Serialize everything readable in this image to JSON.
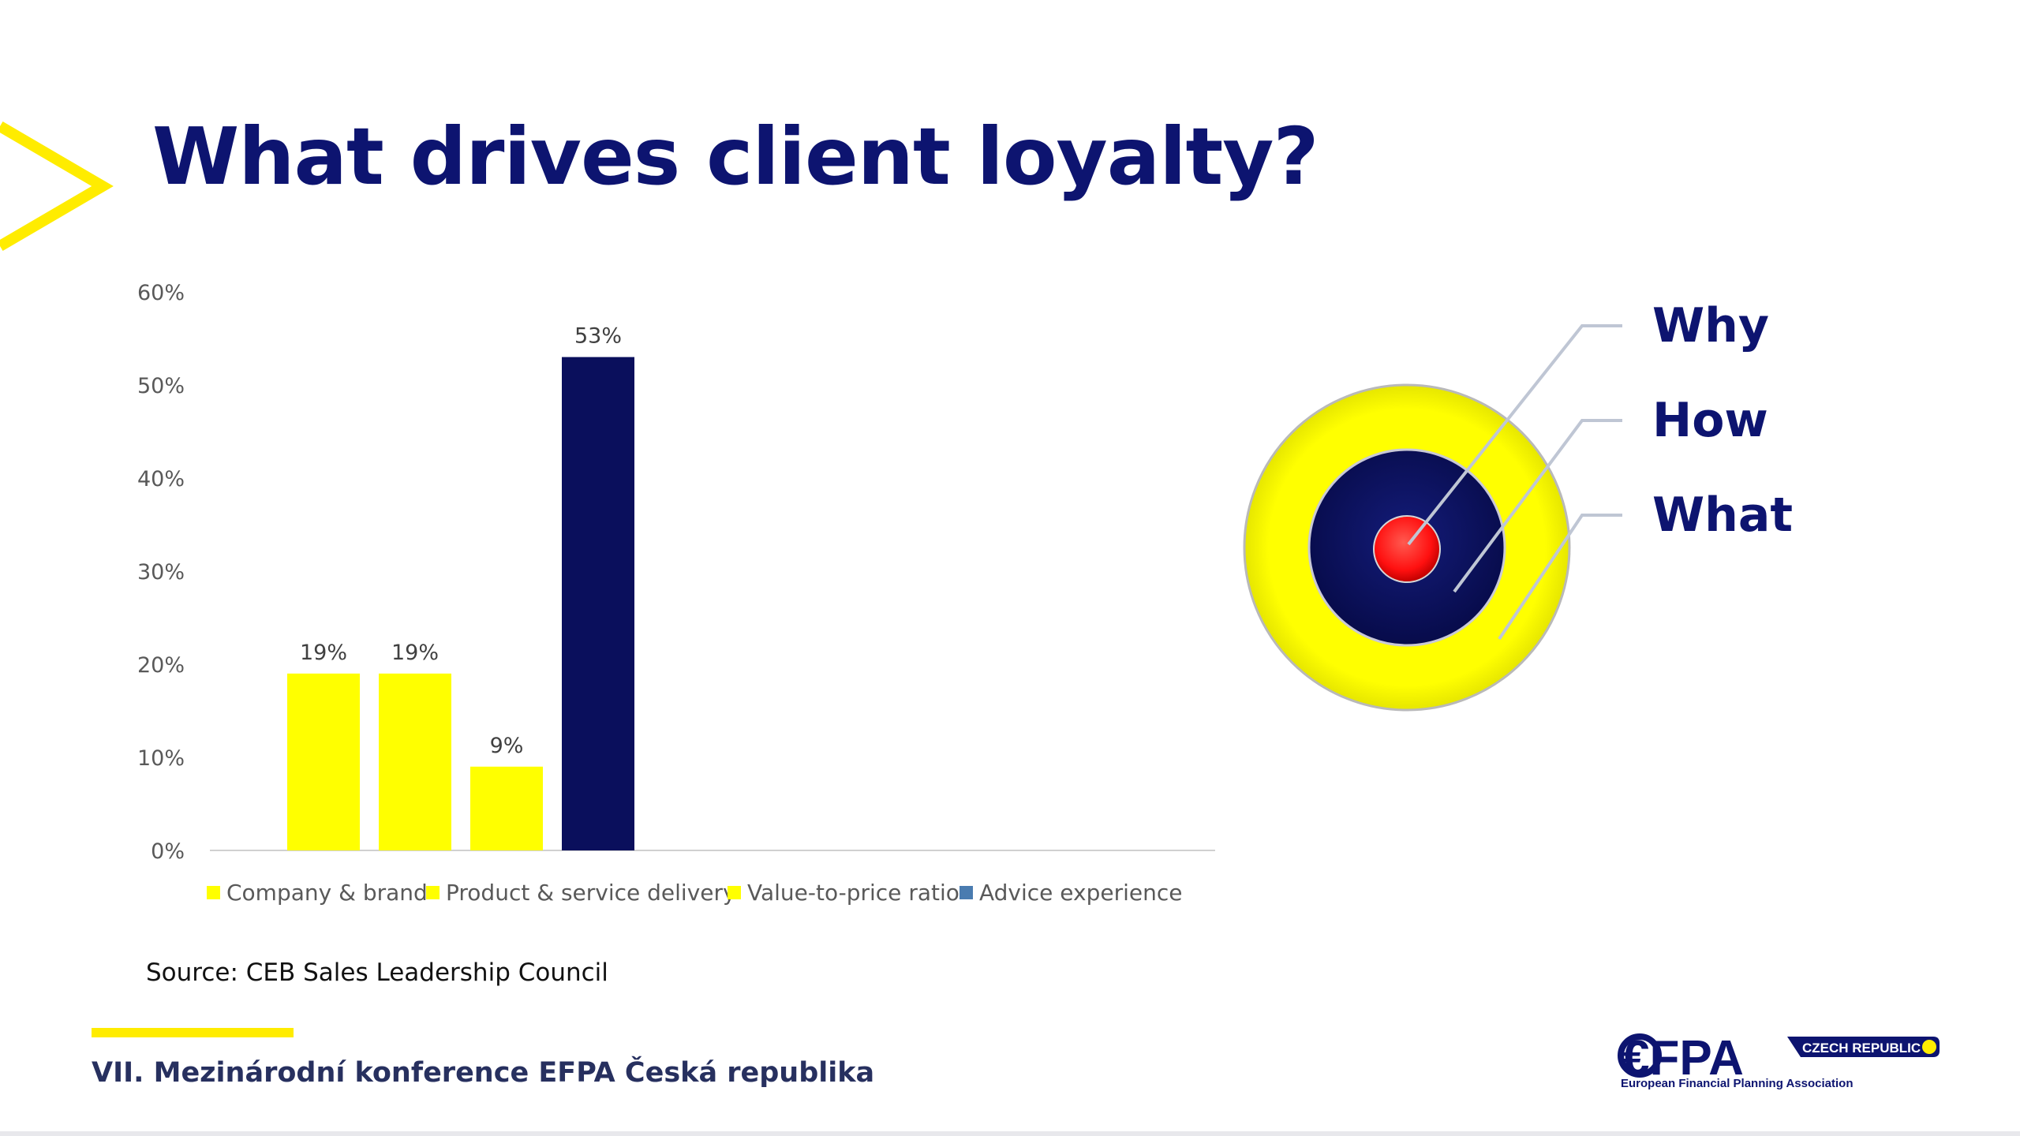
{
  "slide": {
    "title": "What drives client loyalty?",
    "source": "Source: CEB Sales Leadership Council",
    "footer": "VII. Mezinárodní konference EFPA Česká republika"
  },
  "target_diagram": {
    "labels": [
      "Why",
      "How",
      "What"
    ],
    "colors": {
      "outer": "#ffff00",
      "middle": "#0a0f60",
      "core": "#ff1010"
    }
  },
  "logo": {
    "brand": "€FPA",
    "badge": "CZECH REPUBLIC",
    "tagline": "European Financial Planning Association"
  },
  "colors": {
    "accent_yellow": "#ffff00",
    "navy": "#0a0f5c",
    "title_navy": "#0d1470"
  },
  "chart_data": {
    "type": "bar",
    "categories": [
      "Company & brand",
      "Product & service delivery",
      "Value-to-price ratio",
      "Advice experience"
    ],
    "values": [
      19,
      19,
      9,
      53
    ],
    "data_labels": [
      "19%",
      "19%",
      "9%",
      "53%"
    ],
    "colors": [
      "#ffff00",
      "#ffff00",
      "#ffff00",
      "#0a0f5c"
    ],
    "legend_colors": [
      "#ffff00",
      "#ffff00",
      "#ffff00",
      "#4a7cb0"
    ],
    "yticks": [
      "0%",
      "10%",
      "20%",
      "30%",
      "40%",
      "50%",
      "60%"
    ],
    "ylim": [
      0,
      60
    ],
    "grid": false,
    "legend": "bottom",
    "title": "",
    "xlabel": "",
    "ylabel": ""
  }
}
